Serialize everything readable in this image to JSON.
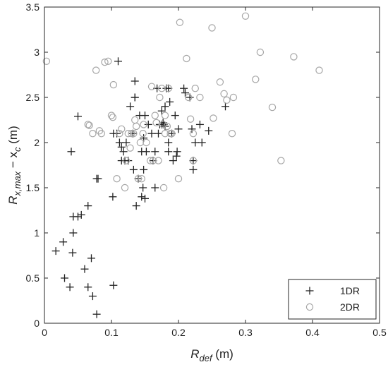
{
  "chart_data": {
    "type": "scatter",
    "xlabel": {
      "main": "R",
      "sub": "def",
      "unit": " (m)"
    },
    "ylabel": {
      "main": "R",
      "sub": "x,max",
      "mid": " − x",
      "sub2": "c",
      "unit": " (m)"
    },
    "xlim": [
      0,
      0.5
    ],
    "ylim": [
      0,
      3.5
    ],
    "xticks": [
      "0",
      "0.1",
      "0.2",
      "0.3",
      "0.4",
      "0.5"
    ],
    "yticks": [
      "0",
      "0.5",
      "1",
      "1.5",
      "2",
      "2.5",
      "3",
      "3.5"
    ],
    "grid": false,
    "legend_position": "bottom-right",
    "series": [
      {
        "name": "1DR",
        "marker": "plus",
        "color": "#222222",
        "points": [
          [
            0.017,
            0.8
          ],
          [
            0.028,
            0.9
          ],
          [
            0.03,
            0.5
          ],
          [
            0.038,
            0.4
          ],
          [
            0.04,
            1.9
          ],
          [
            0.042,
            0.78
          ],
          [
            0.043,
            1.0
          ],
          [
            0.043,
            1.18
          ],
          [
            0.05,
            1.18
          ],
          [
            0.05,
            2.29
          ],
          [
            0.055,
            1.2
          ],
          [
            0.06,
            0.6
          ],
          [
            0.065,
            0.4
          ],
          [
            0.065,
            1.3
          ],
          [
            0.07,
            0.72
          ],
          [
            0.072,
            0.3
          ],
          [
            0.078,
            0.1
          ],
          [
            0.078,
            1.6
          ],
          [
            0.08,
            1.6
          ],
          [
            0.103,
            0.42
          ],
          [
            0.102,
            1.4
          ],
          [
            0.103,
            2.1
          ],
          [
            0.108,
            2.1
          ],
          [
            0.11,
            2.9
          ],
          [
            0.112,
            2.0
          ],
          [
            0.115,
            1.95
          ],
          [
            0.115,
            1.8
          ],
          [
            0.118,
            1.9
          ],
          [
            0.12,
            1.8
          ],
          [
            0.122,
            2.0
          ],
          [
            0.125,
            1.8
          ],
          [
            0.128,
            2.4
          ],
          [
            0.132,
            2.1
          ],
          [
            0.133,
            1.7
          ],
          [
            0.135,
            2.5
          ],
          [
            0.135,
            2.68
          ],
          [
            0.135,
            2.5
          ],
          [
            0.137,
            1.3
          ],
          [
            0.14,
            1.6
          ],
          [
            0.142,
            2.3
          ],
          [
            0.145,
            1.9
          ],
          [
            0.145,
            1.4
          ],
          [
            0.147,
            1.5
          ],
          [
            0.148,
            2.05
          ],
          [
            0.148,
            1.7
          ],
          [
            0.15,
            2.3
          ],
          [
            0.15,
            1.38
          ],
          [
            0.152,
            1.9
          ],
          [
            0.155,
            2.2
          ],
          [
            0.16,
            2.1
          ],
          [
            0.162,
            1.8
          ],
          [
            0.165,
            1.9
          ],
          [
            0.165,
            1.5
          ],
          [
            0.168,
            2.6
          ],
          [
            0.17,
            2.1
          ],
          [
            0.172,
            2.2
          ],
          [
            0.175,
            2.2
          ],
          [
            0.175,
            2.35
          ],
          [
            0.177,
            2.22
          ],
          [
            0.178,
            2.2
          ],
          [
            0.18,
            2.4
          ],
          [
            0.18,
            2.18
          ],
          [
            0.182,
            2.6
          ],
          [
            0.185,
            2.0
          ],
          [
            0.185,
            2.6
          ],
          [
            0.185,
            1.9
          ],
          [
            0.187,
            2.45
          ],
          [
            0.19,
            2.1
          ],
          [
            0.192,
            1.8
          ],
          [
            0.195,
            2.3
          ],
          [
            0.197,
            1.85
          ],
          [
            0.198,
            1.9
          ],
          [
            0.2,
            2.15
          ],
          [
            0.208,
            2.6
          ],
          [
            0.21,
            2.55
          ],
          [
            0.217,
            2.5
          ],
          [
            0.22,
            2.15
          ],
          [
            0.222,
            1.7
          ],
          [
            0.222,
            1.8
          ],
          [
            0.225,
            2.0
          ],
          [
            0.232,
            2.2
          ],
          [
            0.235,
            2.0
          ],
          [
            0.245,
            2.13
          ],
          [
            0.27,
            2.4
          ]
        ]
      },
      {
        "name": "2DR",
        "marker": "circle",
        "color": "#a6a6a6",
        "points": [
          [
            0.003,
            2.9
          ],
          [
            0.065,
            2.2
          ],
          [
            0.067,
            2.19
          ],
          [
            0.072,
            2.1
          ],
          [
            0.077,
            2.8
          ],
          [
            0.082,
            2.13
          ],
          [
            0.085,
            2.1
          ],
          [
            0.09,
            2.89
          ],
          [
            0.095,
            2.9
          ],
          [
            0.1,
            2.3
          ],
          [
            0.102,
            2.28
          ],
          [
            0.103,
            2.64
          ],
          [
            0.108,
            1.6
          ],
          [
            0.112,
            2.1
          ],
          [
            0.115,
            2.15
          ],
          [
            0.12,
            1.5
          ],
          [
            0.122,
            1.8
          ],
          [
            0.125,
            2.1
          ],
          [
            0.128,
            1.94
          ],
          [
            0.13,
            2.1
          ],
          [
            0.133,
            2.1
          ],
          [
            0.135,
            2.25
          ],
          [
            0.137,
            2.18
          ],
          [
            0.14,
            1.6
          ],
          [
            0.143,
            2.0
          ],
          [
            0.145,
            1.6
          ],
          [
            0.147,
            2.1
          ],
          [
            0.148,
            2.2
          ],
          [
            0.152,
            2.0
          ],
          [
            0.158,
            1.8
          ],
          [
            0.16,
            2.62
          ],
          [
            0.162,
            1.8
          ],
          [
            0.165,
            2.3
          ],
          [
            0.167,
            2.22
          ],
          [
            0.17,
            1.8
          ],
          [
            0.172,
            2.5
          ],
          [
            0.175,
            2.6
          ],
          [
            0.177,
            2.2
          ],
          [
            0.178,
            1.5
          ],
          [
            0.18,
            2.1
          ],
          [
            0.18,
            2.3
          ],
          [
            0.183,
            2.18
          ],
          [
            0.185,
            2.6
          ],
          [
            0.188,
            2.1
          ],
          [
            0.19,
            2.1
          ],
          [
            0.2,
            1.6
          ],
          [
            0.202,
            3.33
          ],
          [
            0.212,
            2.93
          ],
          [
            0.215,
            2.5
          ],
          [
            0.218,
            2.26
          ],
          [
            0.222,
            1.8
          ],
          [
            0.222,
            2.1
          ],
          [
            0.225,
            2.6
          ],
          [
            0.232,
            2.5
          ],
          [
            0.25,
            3.27
          ],
          [
            0.252,
            2.27
          ],
          [
            0.262,
            2.67
          ],
          [
            0.268,
            2.54
          ],
          [
            0.272,
            2.47
          ],
          [
            0.28,
            2.1
          ],
          [
            0.282,
            2.5
          ],
          [
            0.3,
            3.4
          ],
          [
            0.315,
            2.7
          ],
          [
            0.322,
            3.0
          ],
          [
            0.34,
            2.39
          ],
          [
            0.353,
            1.8
          ],
          [
            0.372,
            2.95
          ],
          [
            0.41,
            2.8
          ]
        ]
      }
    ]
  }
}
